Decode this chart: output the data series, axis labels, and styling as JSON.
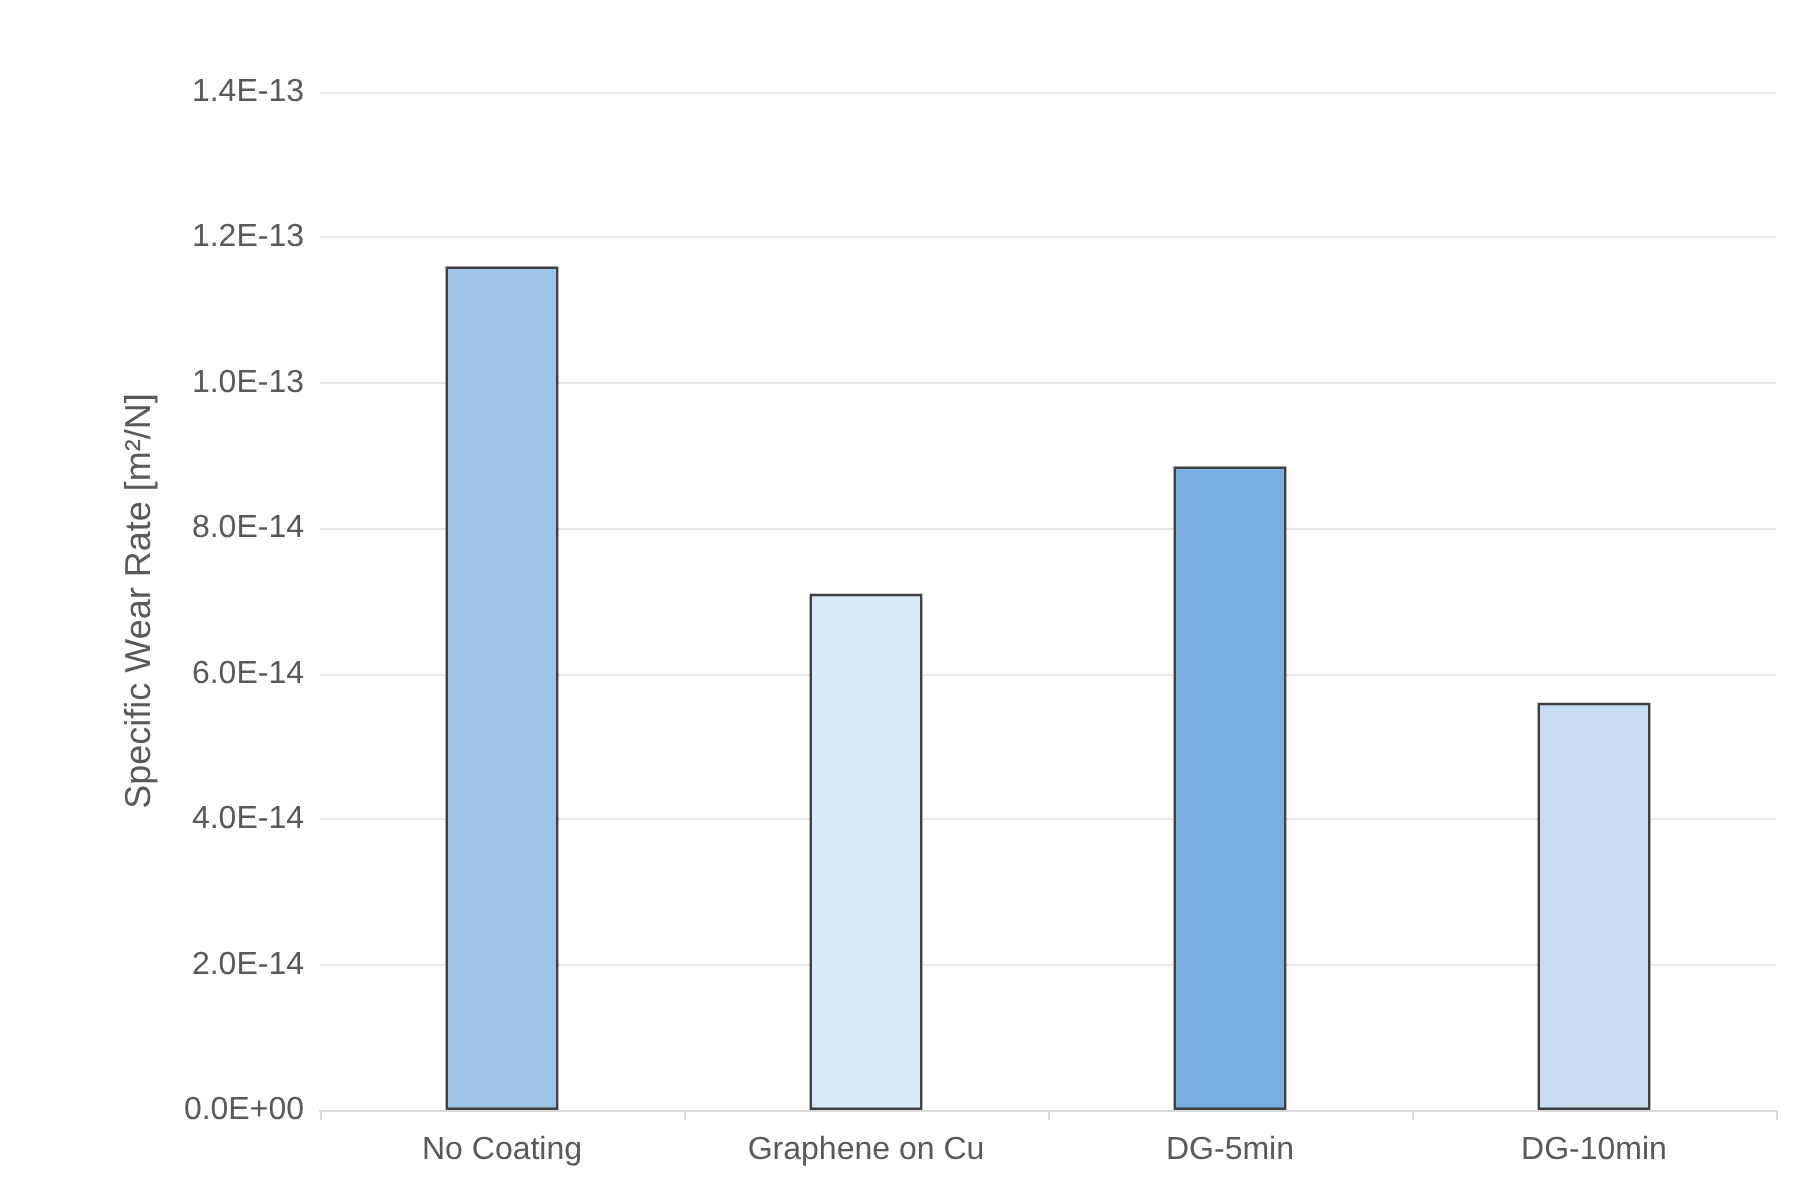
{
  "chart_data": {
    "type": "bar",
    "ylabel": "Specific Wear Rate [m²/N]",
    "categories": [
      "No Coating",
      "Graphene on Cu",
      "DG-5min",
      "DG-10min"
    ],
    "values": [
      1.16e-13,
      7.1e-14,
      8.85e-14,
      5.6e-14
    ],
    "colors": [
      "#9dc3e6",
      "#d9e8f6",
      "#7aaee0",
      "#c5dcf0"
    ],
    "ylim": [
      0,
      1.4e-13
    ],
    "yticks": [
      {
        "value": 0,
        "label": "0.0E+00"
      },
      {
        "value": 2e-14,
        "label": "2.0E-14"
      },
      {
        "value": 4e-14,
        "label": "4.0E-14"
      },
      {
        "value": 6e-14,
        "label": "6.0E-14"
      },
      {
        "value": 8e-14,
        "label": "8.0E-14"
      },
      {
        "value": 1e-13,
        "label": "1.0E-13"
      },
      {
        "value": 1.2e-13,
        "label": "1.2E-13"
      },
      {
        "value": 1.4e-13,
        "label": "1.4E-13"
      }
    ],
    "grid": "y"
  }
}
